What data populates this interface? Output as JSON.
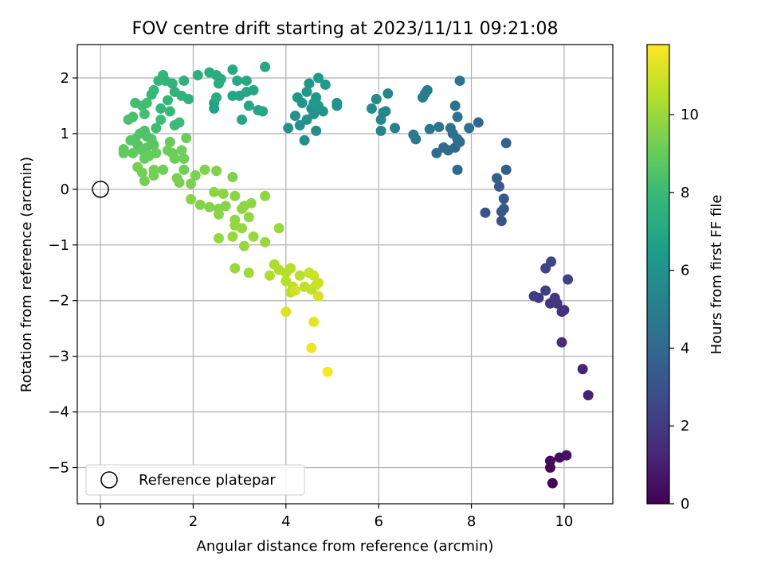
{
  "chart_data": {
    "type": "scatter",
    "title": "FOV centre drift starting at 2023/11/11 09:21:08",
    "xlabel": "Angular distance from reference (arcmin)",
    "ylabel": "Rotation from reference (arcmin)",
    "xlim": [
      -0.5,
      11.05
    ],
    "ylim": [
      -5.65,
      2.6
    ],
    "xticks": [
      0,
      2,
      4,
      6,
      8,
      10
    ],
    "yticks": [
      -5,
      -4,
      -3,
      -2,
      -1,
      0,
      1,
      2
    ],
    "grid": true,
    "legend": {
      "placement": "lower-left",
      "entries": [
        "Reference platepar"
      ]
    },
    "reference_point": {
      "x": 0,
      "y": 0,
      "label": "Reference platepar"
    },
    "colorbar": {
      "label": "Hours from first FF file",
      "min": 0,
      "max": 11.8,
      "ticks": [
        0,
        2,
        4,
        6,
        8,
        10
      ],
      "colormap": "viridis"
    },
    "colormap_stops": [
      "#440154",
      "#482878",
      "#3e4989",
      "#31688e",
      "#26828e",
      "#1f9e89",
      "#35b779",
      "#6ece58",
      "#b5de2b",
      "#fde725"
    ],
    "series": [
      {
        "values": [
          [
            9.75,
            -5.28,
            0.1
          ],
          [
            9.7,
            -5.0,
            0.2
          ],
          [
            9.7,
            -4.88,
            0.3
          ],
          [
            9.9,
            -4.82,
            0.4
          ],
          [
            10.05,
            -4.78,
            0.5
          ],
          [
            10.52,
            -3.7,
            1.1
          ],
          [
            10.4,
            -3.23,
            1.2
          ],
          [
            9.95,
            -2.75,
            1.5
          ],
          [
            9.95,
            -2.2,
            1.6
          ],
          [
            10.0,
            -2.17,
            1.7
          ],
          [
            9.85,
            -2.05,
            1.8
          ],
          [
            9.7,
            -2.05,
            1.9
          ],
          [
            9.45,
            -1.95,
            2.0
          ],
          [
            9.35,
            -1.92,
            2.1
          ],
          [
            9.6,
            -1.82,
            2.2
          ],
          [
            10.08,
            -1.62,
            2.3
          ],
          [
            9.6,
            -1.42,
            2.4
          ],
          [
            9.72,
            -1.3,
            2.5
          ],
          [
            9.8,
            -1.95,
            2.0
          ],
          [
            8.65,
            -0.57,
            3.0
          ],
          [
            8.3,
            -0.42,
            3.1
          ],
          [
            8.7,
            -0.35,
            3.2
          ],
          [
            8.65,
            -0.4,
            3.2
          ],
          [
            8.7,
            -0.17,
            3.3
          ],
          [
            8.6,
            0.05,
            3.4
          ],
          [
            8.55,
            0.2,
            3.5
          ],
          [
            8.75,
            0.35,
            3.5
          ],
          [
            8.75,
            0.83,
            3.6
          ],
          [
            8.15,
            1.2,
            3.8
          ],
          [
            7.7,
            0.35,
            4.0
          ],
          [
            7.65,
            0.75,
            4.0
          ],
          [
            7.5,
            0.7,
            4.1
          ],
          [
            7.4,
            0.75,
            4.2
          ],
          [
            7.25,
            0.65,
            4.2
          ],
          [
            7.7,
            0.9,
            4.3
          ],
          [
            7.6,
            1.0,
            4.3
          ],
          [
            7.75,
            0.85,
            4.3
          ],
          [
            7.95,
            1.1,
            4.4
          ],
          [
            7.55,
            1.1,
            4.4
          ],
          [
            7.7,
            1.3,
            4.5
          ],
          [
            7.65,
            1.5,
            4.5
          ],
          [
            7.75,
            1.95,
            4.6
          ],
          [
            7.3,
            1.12,
            4.7
          ],
          [
            7.1,
            1.08,
            4.7
          ],
          [
            6.8,
            0.9,
            4.8
          ],
          [
            6.75,
            0.98,
            4.8
          ],
          [
            7.05,
            1.78,
            4.9
          ],
          [
            7.0,
            1.72,
            4.9
          ],
          [
            6.95,
            1.65,
            5.0
          ],
          [
            6.35,
            1.1,
            5.2
          ],
          [
            6.05,
            1.05,
            5.3
          ],
          [
            6.15,
            1.4,
            5.4
          ],
          [
            6.2,
            1.72,
            5.4
          ],
          [
            6.05,
            1.25,
            5.5
          ],
          [
            6.1,
            1.38,
            5.5
          ],
          [
            5.85,
            1.45,
            5.6
          ],
          [
            5.95,
            1.62,
            5.6
          ],
          [
            4.4,
            0.88,
            5.8
          ],
          [
            4.65,
            1.05,
            5.9
          ],
          [
            4.3,
            1.15,
            5.9
          ],
          [
            4.05,
            1.1,
            6.0
          ],
          [
            4.2,
            1.32,
            6.0
          ],
          [
            4.45,
            1.25,
            6.0
          ],
          [
            4.6,
            1.35,
            6.0
          ],
          [
            4.55,
            1.45,
            6.0
          ],
          [
            4.8,
            1.4,
            6.1
          ],
          [
            5.1,
            1.5,
            6.1
          ],
          [
            5.1,
            1.55,
            6.1
          ],
          [
            4.7,
            1.5,
            6.2
          ],
          [
            4.35,
            1.55,
            6.2
          ],
          [
            4.25,
            1.65,
            6.2
          ],
          [
            4.65,
            1.65,
            6.2
          ],
          [
            4.45,
            1.75,
            6.3
          ],
          [
            4.85,
            1.88,
            6.3
          ],
          [
            4.5,
            1.9,
            6.3
          ],
          [
            4.7,
            2.0,
            6.4
          ],
          [
            4.6,
            1.55,
            6.3
          ],
          [
            2.45,
            1.45,
            6.8
          ],
          [
            2.45,
            1.55,
            6.8
          ],
          [
            3.05,
            1.25,
            6.9
          ],
          [
            3.2,
            1.5,
            6.9
          ],
          [
            3.4,
            1.42,
            6.9
          ],
          [
            3.5,
            1.4,
            7.0
          ],
          [
            3.0,
            1.68,
            7.0
          ],
          [
            3.15,
            1.75,
            7.0
          ],
          [
            3.3,
            1.78,
            7.0
          ],
          [
            2.85,
            1.68,
            7.0
          ],
          [
            2.95,
            1.95,
            7.1
          ],
          [
            3.55,
            2.2,
            7.1
          ],
          [
            3.15,
            1.95,
            7.1
          ],
          [
            2.85,
            2.15,
            7.2
          ],
          [
            2.5,
            2.05,
            7.2
          ],
          [
            2.55,
            1.9,
            7.2
          ],
          [
            2.6,
            1.98,
            7.3
          ],
          [
            2.35,
            2.1,
            7.3
          ],
          [
            2.5,
            1.65,
            7.3
          ],
          [
            2.1,
            2.05,
            7.4
          ],
          [
            1.8,
            1.95,
            7.5
          ],
          [
            1.9,
            1.62,
            7.5
          ],
          [
            1.75,
            1.68,
            7.6
          ],
          [
            1.6,
            1.75,
            7.6
          ],
          [
            1.55,
            1.9,
            7.6
          ],
          [
            1.35,
            2.05,
            7.7
          ],
          [
            1.4,
            1.95,
            7.7
          ],
          [
            1.25,
            1.95,
            7.8
          ],
          [
            1.45,
            1.6,
            7.8
          ],
          [
            1.3,
            1.45,
            7.8
          ],
          [
            1.1,
            1.7,
            7.9
          ],
          [
            1.15,
            1.78,
            7.9
          ],
          [
            1.5,
            1.4,
            7.9
          ],
          [
            1.7,
            1.2,
            8.0
          ],
          [
            1.6,
            1.15,
            8.0
          ],
          [
            1.3,
            1.25,
            8.1
          ],
          [
            1.2,
            1.1,
            8.1
          ],
          [
            0.75,
            1.55,
            8.2
          ],
          [
            0.9,
            1.5,
            8.2
          ],
          [
            1.0,
            1.55,
            8.2
          ],
          [
            0.95,
            1.35,
            8.3
          ],
          [
            0.7,
            1.3,
            8.3
          ],
          [
            0.6,
            1.25,
            8.4
          ],
          [
            0.95,
            1.05,
            8.4
          ],
          [
            0.85,
            1.0,
            8.5
          ],
          [
            1.0,
            0.95,
            8.5
          ],
          [
            1.1,
            0.9,
            8.6
          ],
          [
            0.75,
            0.9,
            8.6
          ],
          [
            0.65,
            0.88,
            8.7
          ],
          [
            0.8,
            0.8,
            8.7
          ],
          [
            1.15,
            0.8,
            8.7
          ],
          [
            1.0,
            0.75,
            8.8
          ],
          [
            0.9,
            0.7,
            8.8
          ],
          [
            0.7,
            0.65,
            8.9
          ],
          [
            0.5,
            0.65,
            8.9
          ],
          [
            0.5,
            0.72,
            8.9
          ],
          [
            1.05,
            0.6,
            9.0
          ],
          [
            0.95,
            0.55,
            9.0
          ],
          [
            1.2,
            0.65,
            9.0
          ],
          [
            1.5,
            0.85,
            9.0
          ],
          [
            1.45,
            0.7,
            9.1
          ],
          [
            1.6,
            0.55,
            9.1
          ],
          [
            1.55,
            0.65,
            9.1
          ],
          [
            1.85,
            0.92,
            9.1
          ],
          [
            1.75,
            0.7,
            9.2
          ],
          [
            1.8,
            0.55,
            9.2
          ],
          [
            1.8,
            0.35,
            9.2
          ],
          [
            1.35,
            0.35,
            9.2
          ],
          [
            1.15,
            0.35,
            9.3
          ],
          [
            0.9,
            0.3,
            9.3
          ],
          [
            0.8,
            0.4,
            9.3
          ],
          [
            1.15,
            0.25,
            9.3
          ],
          [
            0.95,
            0.15,
            9.3
          ],
          [
            1.7,
            0.12,
            9.4
          ],
          [
            1.65,
            0.2,
            9.4
          ],
          [
            1.95,
            0.1,
            9.4
          ],
          [
            2.05,
            0.25,
            9.4
          ],
          [
            2.25,
            0.35,
            9.5
          ],
          [
            2.5,
            0.33,
            9.5
          ],
          [
            2.85,
            0.22,
            9.5
          ],
          [
            1.95,
            -0.18,
            9.6
          ],
          [
            2.15,
            -0.28,
            9.6
          ],
          [
            2.35,
            -0.32,
            9.6
          ],
          [
            2.55,
            -0.35,
            9.6
          ],
          [
            2.7,
            -0.3,
            9.6
          ],
          [
            2.55,
            -0.45,
            9.7
          ],
          [
            2.45,
            -0.05,
            9.7
          ],
          [
            2.65,
            -0.08,
            9.7
          ],
          [
            2.9,
            -0.12,
            9.7
          ],
          [
            3.1,
            -0.3,
            9.8
          ],
          [
            3.25,
            -0.25,
            9.8
          ],
          [
            3.05,
            -0.35,
            9.8
          ],
          [
            3.2,
            -0.5,
            9.8
          ],
          [
            2.9,
            -0.55,
            9.8
          ],
          [
            3.55,
            -0.12,
            9.8
          ],
          [
            2.9,
            -0.65,
            9.9
          ],
          [
            3.05,
            -0.7,
            9.9
          ],
          [
            2.85,
            -0.85,
            9.9
          ],
          [
            2.55,
            -0.88,
            9.9
          ],
          [
            3.3,
            -0.85,
            9.9
          ],
          [
            3.1,
            -1.02,
            9.9
          ],
          [
            3.55,
            -0.95,
            10.0
          ],
          [
            3.85,
            -0.7,
            10.0
          ],
          [
            2.9,
            -1.42,
            10.0
          ],
          [
            3.2,
            -1.5,
            10.1
          ],
          [
            3.75,
            -1.35,
            10.3
          ],
          [
            3.85,
            -1.45,
            10.4
          ],
          [
            3.65,
            -1.55,
            10.4
          ],
          [
            4.0,
            -1.5,
            10.5
          ],
          [
            4.1,
            -1.42,
            10.5
          ],
          [
            4.0,
            -1.65,
            10.5
          ],
          [
            4.15,
            -1.75,
            10.6
          ],
          [
            4.3,
            -1.55,
            10.6
          ],
          [
            4.1,
            -1.85,
            10.6
          ],
          [
            4.4,
            -1.75,
            10.7
          ],
          [
            4.55,
            -1.8,
            10.7
          ],
          [
            4.65,
            -1.72,
            10.8
          ],
          [
            4.5,
            -1.5,
            10.8
          ],
          [
            4.6,
            -1.55,
            10.9
          ],
          [
            4.7,
            -1.68,
            10.9
          ],
          [
            4.7,
            -1.92,
            11.0
          ],
          [
            4.2,
            -1.82,
            11.0
          ],
          [
            4.0,
            -2.2,
            11.1
          ],
          [
            4.6,
            -2.38,
            11.3
          ],
          [
            4.55,
            -2.85,
            11.5
          ],
          [
            4.9,
            -3.28,
            11.7
          ]
        ]
      }
    ]
  }
}
